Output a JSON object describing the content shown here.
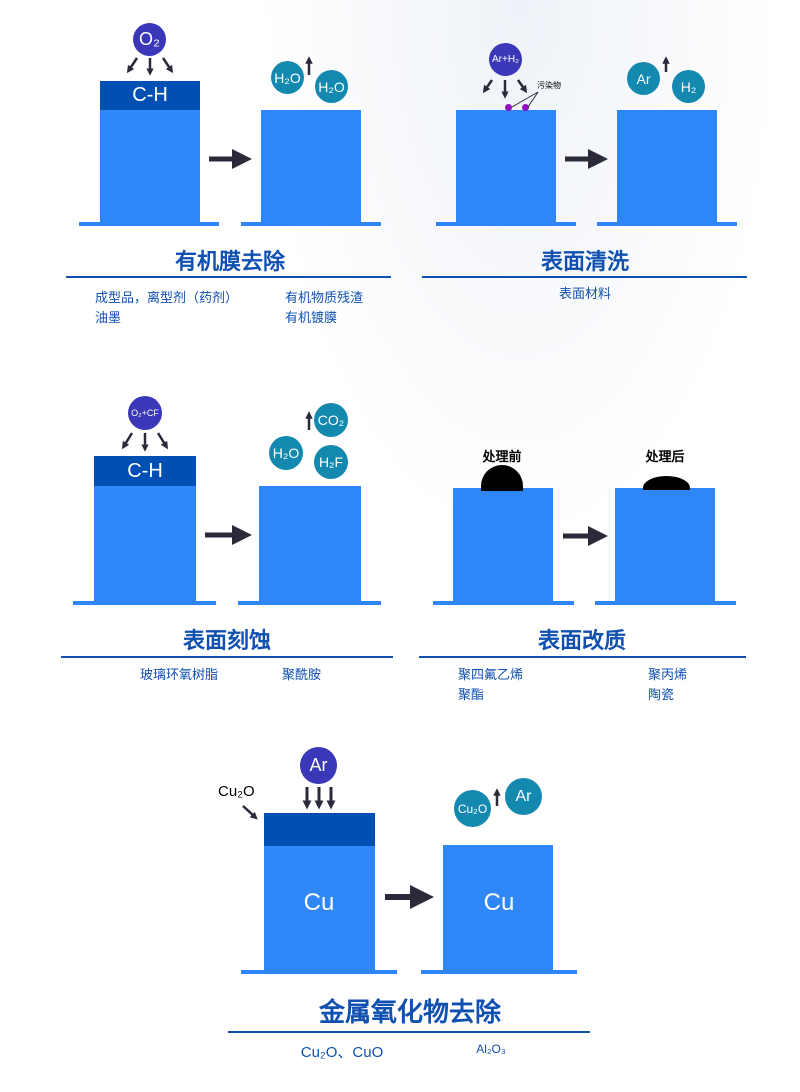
{
  "colors": {
    "substrate": "#2f87f7",
    "film": "#0050b4",
    "reactant": "#3a37b8",
    "product": "#1489b0",
    "title": "#1050b0",
    "arrow": "#2a2a3a"
  },
  "panels": [
    {
      "title": "有机膜去除",
      "film": "C-H",
      "reactant": "O₂",
      "products": [
        "H₂O",
        "H₂O"
      ],
      "items": [
        "成型品，离型剂（药剂）",
        "油墨",
        "有机物质残渣",
        "有机镀膜"
      ]
    },
    {
      "title": "表面清洗",
      "reactant": "Ar+H₂",
      "contaminant_label": "污染物",
      "products": [
        "Ar",
        "H₂"
      ],
      "items": [
        "表面材料"
      ]
    },
    {
      "title": "表面刻蚀",
      "film": "C-H",
      "reactant": "O₂+CF",
      "products": [
        "CO₂",
        "H₂O",
        "H₂F"
      ],
      "items": [
        "玻璃环氧树脂",
        "聚酰胺"
      ]
    },
    {
      "title": "表面改质",
      "before": "处理前",
      "after": "处理后",
      "items": [
        "聚四氟乙烯",
        "聚酯",
        "聚丙烯",
        "陶瓷"
      ]
    },
    {
      "title": "金属氧化物去除",
      "film_label": "Cu₂O",
      "substrate": "Cu",
      "reactant": "Ar",
      "products": [
        "Cu₂O",
        "Ar"
      ],
      "items": [
        "Cu₂O、CuO",
        "Al₂O₃"
      ]
    }
  ]
}
